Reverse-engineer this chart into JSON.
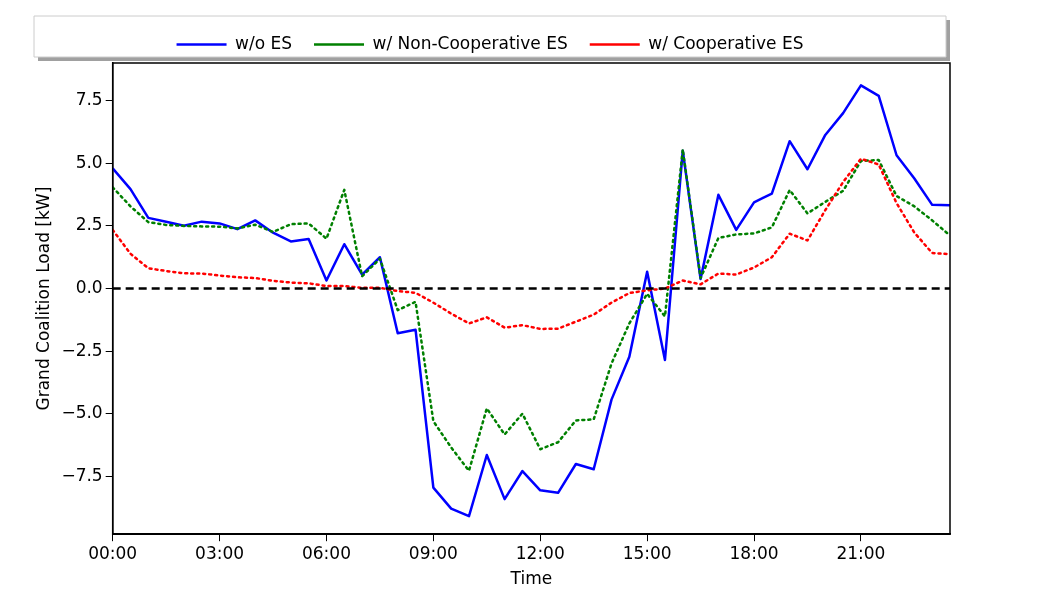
{
  "chart_data": {
    "type": "line",
    "xlabel": "Time",
    "ylabel": "Grand Coalition Load [kW]",
    "x": [
      0,
      0.5,
      1,
      1.5,
      2,
      2.5,
      3,
      3.5,
      4,
      4.5,
      5,
      5.5,
      6,
      6.5,
      7,
      7.5,
      8,
      8.5,
      9,
      9.5,
      10,
      10.5,
      11,
      11.5,
      12,
      12.5,
      13,
      13.5,
      14,
      14.5,
      15,
      15.5,
      16,
      16.5,
      17,
      17.5,
      18,
      18.5,
      19,
      19.5,
      20,
      20.5,
      21,
      21.5,
      22,
      22.5,
      23,
      23.5
    ],
    "series": [
      {
        "name": "w/o ES",
        "color": "#0000ff",
        "line_style": "solid",
        "values": [
          4.8,
          3.97,
          2.82,
          2.67,
          2.51,
          2.67,
          2.6,
          2.37,
          2.72,
          2.23,
          1.88,
          1.98,
          0.32,
          1.77,
          0.56,
          1.25,
          -1.78,
          -1.64,
          -7.94,
          -8.78,
          -9.08,
          -6.64,
          -8.4,
          -7.28,
          -8.05,
          -8.15,
          -7.0,
          -7.21,
          -4.43,
          -2.72,
          0.67,
          -2.85,
          5.5,
          0.38,
          3.74,
          2.34,
          3.44,
          3.79,
          5.88,
          4.76,
          6.13,
          7.0,
          8.11,
          7.69,
          5.32,
          4.39,
          3.34,
          3.32
        ]
      },
      {
        "name": "w/ Non-Cooperative ES",
        "color": "#008000",
        "line_style": "dotted",
        "values": [
          4.04,
          3.28,
          2.65,
          2.54,
          2.5,
          2.48,
          2.47,
          2.4,
          2.55,
          2.26,
          2.57,
          2.6,
          1.99,
          3.94,
          0.49,
          1.19,
          -0.86,
          -0.53,
          -5.29,
          -6.34,
          -7.27,
          -4.78,
          -5.82,
          -4.99,
          -6.41,
          -6.13,
          -5.26,
          -5.22,
          -2.99,
          -1.39,
          -0.21,
          -1.11,
          5.55,
          0.42,
          2.02,
          2.16,
          2.2,
          2.44,
          3.93,
          3.0,
          3.46,
          3.9,
          5.09,
          5.13,
          3.69,
          3.28,
          2.72,
          2.12
        ]
      },
      {
        "name": "w/ Cooperative ES",
        "color": "#ff0000",
        "line_style": "dotted",
        "values": [
          2.34,
          1.39,
          0.81,
          0.7,
          0.61,
          0.6,
          0.52,
          0.45,
          0.42,
          0.31,
          0.24,
          0.21,
          0.1,
          0.1,
          0.03,
          0.03,
          -0.1,
          -0.17,
          -0.56,
          -1.0,
          -1.39,
          -1.15,
          -1.56,
          -1.46,
          -1.61,
          -1.6,
          -1.32,
          -1.04,
          -0.56,
          -0.18,
          -0.07,
          0.0,
          0.32,
          0.17,
          0.6,
          0.56,
          0.84,
          1.25,
          2.19,
          1.92,
          3.13,
          4.25,
          5.18,
          4.95,
          3.41,
          2.23,
          1.42,
          1.37
        ]
      }
    ],
    "xlim": [
      0,
      23.5
    ],
    "xticks": [
      {
        "value": 0,
        "label": "00:00"
      },
      {
        "value": 3,
        "label": "03:00"
      },
      {
        "value": 6,
        "label": "06:00"
      },
      {
        "value": 9,
        "label": "09:00"
      },
      {
        "value": 12,
        "label": "12:00"
      },
      {
        "value": 15,
        "label": "15:00"
      },
      {
        "value": 18,
        "label": "18:00"
      },
      {
        "value": 21,
        "label": "21:00"
      }
    ],
    "ylim": [
      -9.8,
      9.0
    ],
    "yticks": [
      {
        "value": -7.5,
        "label": "−7.5"
      },
      {
        "value": -5,
        "label": "−5.0"
      },
      {
        "value": -2.5,
        "label": "−2.5"
      },
      {
        "value": 0,
        "label": "0.0"
      },
      {
        "value": 2.5,
        "label": "2.5"
      },
      {
        "value": 5,
        "label": "5.0"
      },
      {
        "value": 7.5,
        "label": "7.5"
      }
    ],
    "ref_lines": [
      {
        "axis": "y",
        "value": 0,
        "color": "#000000",
        "line_style": "dashed"
      }
    ],
    "grid": false,
    "legend": "top",
    "marker": "none"
  }
}
